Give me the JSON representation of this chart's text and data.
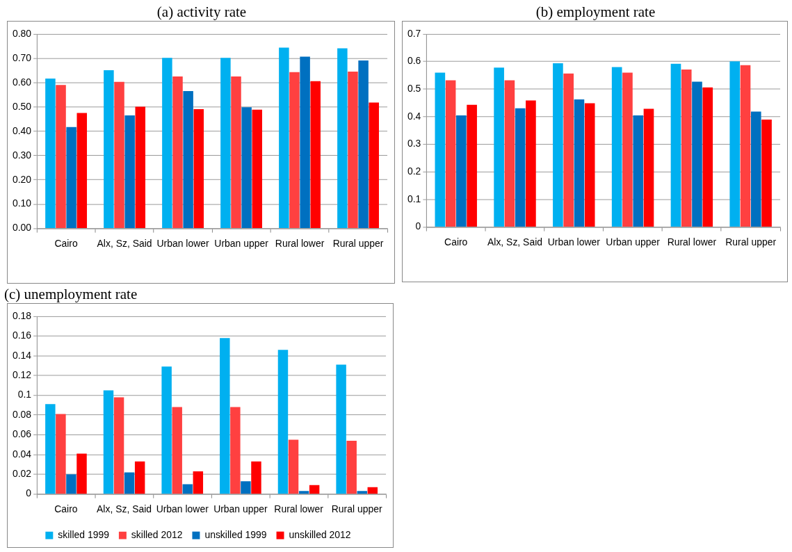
{
  "chart_data": [
    {
      "type": "bar",
      "title": "(a) activity rate",
      "categories": [
        "Cairo",
        "Alx, Sz, Said",
        "Urban lower",
        "Urban upper",
        "Rural lower",
        "Rural upper"
      ],
      "series": [
        {
          "color": "#00b0f0",
          "values": [
            0.617,
            0.651,
            0.702,
            0.702,
            0.744,
            0.741
          ]
        },
        {
          "color": "#ff4040",
          "values": [
            0.59,
            0.603,
            0.625,
            0.625,
            0.643,
            0.645
          ]
        },
        {
          "color": "#0070c0",
          "values": [
            0.417,
            0.465,
            0.565,
            0.499,
            0.707,
            0.691
          ]
        },
        {
          "color": "#ff0000",
          "values": [
            0.475,
            0.501,
            0.491,
            0.489,
            0.606,
            0.518
          ]
        }
      ],
      "ylim": [
        0,
        0.8
      ],
      "yticks": [
        {
          "value": 0,
          "label": "0.00"
        },
        {
          "value": 0.1,
          "label": "0.10"
        },
        {
          "value": 0.2,
          "label": "0.20"
        },
        {
          "value": 0.3,
          "label": "0.30"
        },
        {
          "value": 0.4,
          "label": "0.40"
        },
        {
          "value": 0.5,
          "label": "0.50"
        },
        {
          "value": 0.6,
          "label": "0.60"
        },
        {
          "value": 0.7,
          "label": "0.70"
        },
        {
          "value": 0.8,
          "label": "0.80"
        }
      ],
      "grid": "y",
      "legend": false
    },
    {
      "type": "bar",
      "title": "(b) employment rate",
      "categories": [
        "Cairo",
        "Alx, Sz, Said",
        "Urban lower",
        "Urban upper",
        "Rural lower",
        "Rural upper"
      ],
      "series": [
        {
          "color": "#00b0f0",
          "values": [
            0.56,
            0.578,
            0.594,
            0.58,
            0.592,
            0.601
          ]
        },
        {
          "color": "#ff4040",
          "values": [
            0.532,
            0.532,
            0.557,
            0.56,
            0.571,
            0.587
          ]
        },
        {
          "color": "#0070c0",
          "values": [
            0.405,
            0.431,
            0.463,
            0.405,
            0.527,
            0.419
          ]
        },
        {
          "color": "#ff0000",
          "values": [
            0.443,
            0.459,
            0.449,
            0.429,
            0.506,
            0.39
          ]
        }
      ],
      "ylim": [
        0,
        0.7
      ],
      "yticks": [
        0,
        0.1,
        0.2,
        0.3,
        0.4,
        0.5,
        0.6,
        0.7
      ],
      "grid": "y",
      "legend": false
    },
    {
      "type": "bar",
      "title": "(c) unemployment rate",
      "categories": [
        "Cairo",
        "Alx, Sz, Said",
        "Urban lower",
        "Urban upper",
        "Rural lower",
        "Rural upper"
      ],
      "series": [
        {
          "name": "skilled 1999",
          "color": "#00b0f0",
          "values": [
            0.091,
            0.105,
            0.129,
            0.158,
            0.146,
            0.131
          ]
        },
        {
          "name": "skilled 2012",
          "color": "#ff4040",
          "values": [
            0.081,
            0.098,
            0.088,
            0.088,
            0.055,
            0.054
          ]
        },
        {
          "name": "unskilled 1999",
          "color": "#0070c0",
          "values": [
            0.02,
            0.022,
            0.01,
            0.013,
            0.003,
            0.003
          ]
        },
        {
          "name": "unskilled 2012",
          "color": "#ff0000",
          "values": [
            0.041,
            0.033,
            0.023,
            0.033,
            0.009,
            0.007
          ]
        }
      ],
      "ylim": [
        0,
        0.18
      ],
      "yticks": [
        0,
        0.02,
        0.04,
        0.06,
        0.08,
        0.1,
        0.12,
        0.14,
        0.16,
        0.18
      ],
      "grid": "y",
      "legend": "bottom"
    }
  ]
}
